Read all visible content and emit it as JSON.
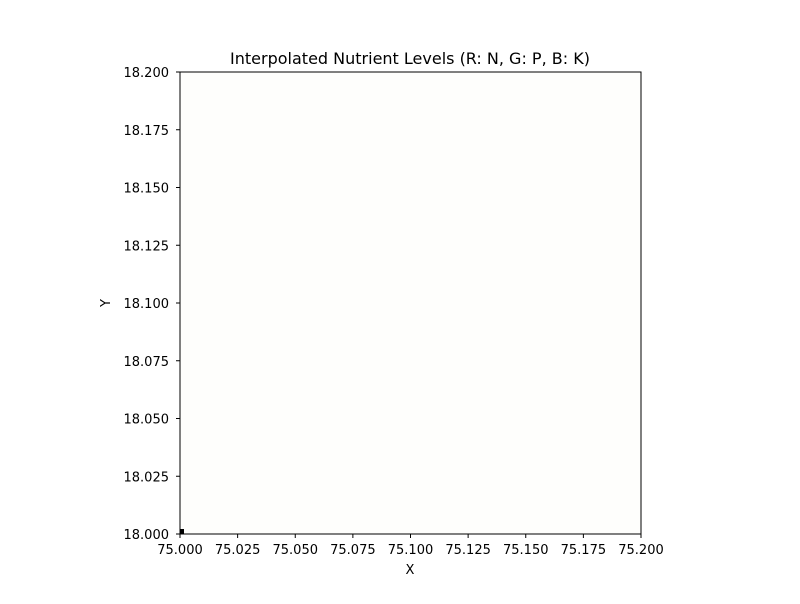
{
  "chart_data": {
    "type": "heatmap",
    "title": "Interpolated Nutrient Levels (R: N, G: P, B: K)",
    "xlabel": "X",
    "ylabel": "Y",
    "xlim": [
      75.0,
      75.2
    ],
    "ylim": [
      18.0,
      18.2
    ],
    "x_ticks": [
      75.0,
      75.025,
      75.05,
      75.075,
      75.1,
      75.125,
      75.15,
      75.175,
      75.2
    ],
    "x_tick_labels": [
      "75.000",
      "75.025",
      "75.050",
      "75.075",
      "75.100",
      "75.125",
      "75.150",
      "75.175",
      "75.200"
    ],
    "y_ticks": [
      18.0,
      18.025,
      18.05,
      18.075,
      18.1,
      18.125,
      18.15,
      18.175,
      18.2
    ],
    "y_tick_labels": [
      "18.000",
      "18.025",
      "18.050",
      "18.075",
      "18.100",
      "18.125",
      "18.150",
      "18.175",
      "18.200"
    ],
    "fill_color": "#fefefc",
    "low_value_marker": {
      "x": 75.0005,
      "y": 18.0005,
      "color": "#000000"
    },
    "grid": false,
    "legend": "none"
  }
}
